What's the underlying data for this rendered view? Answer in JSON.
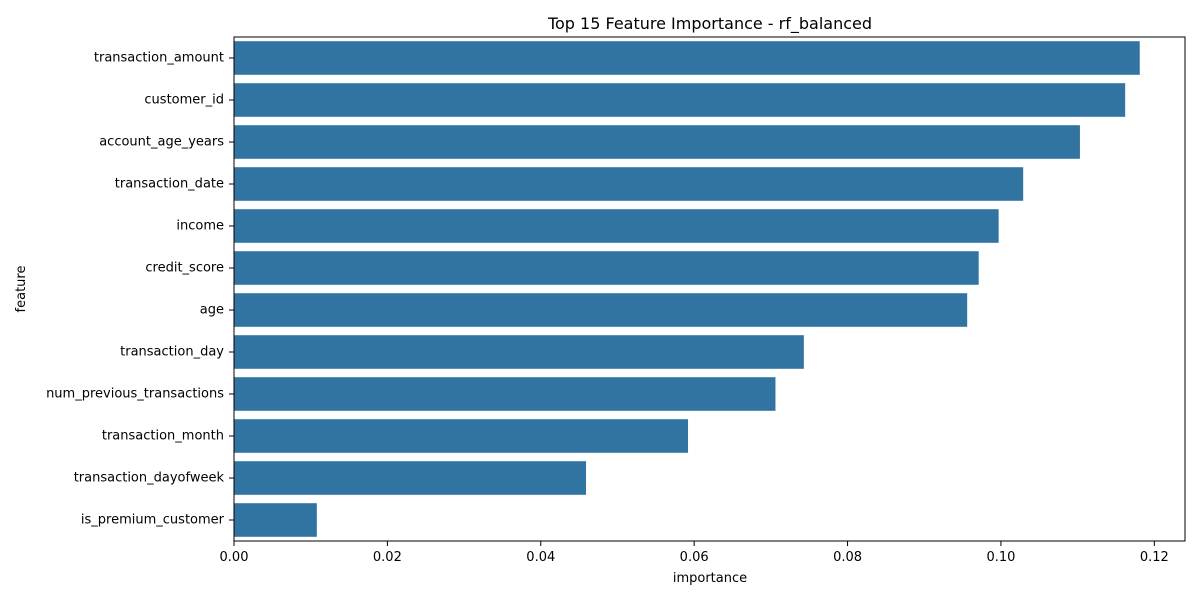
{
  "chart_data": {
    "type": "bar",
    "orientation": "horizontal",
    "title": "Top 15 Feature Importance - rf_balanced",
    "xlabel": "importance",
    "ylabel": "feature",
    "categories": [
      "transaction_amount",
      "customer_id",
      "account_age_years",
      "transaction_date",
      "income",
      "credit_score",
      "age",
      "transaction_day",
      "num_previous_transactions",
      "transaction_month",
      "transaction_dayofweek",
      "is_premium_customer"
    ],
    "values": [
      0.1181,
      0.1162,
      0.1103,
      0.1029,
      0.0997,
      0.0971,
      0.0956,
      0.0743,
      0.0706,
      0.0592,
      0.0459,
      0.0108
    ],
    "xlim": [
      0,
      0.124
    ],
    "xticks": [
      0,
      0.02,
      0.04,
      0.06,
      0.08,
      0.1,
      0.12
    ],
    "xtick_labels": [
      "0.00",
      "0.02",
      "0.04",
      "0.06",
      "0.08",
      "0.10",
      "0.12"
    ],
    "grid": false,
    "bar_color": "#3274a1"
  }
}
